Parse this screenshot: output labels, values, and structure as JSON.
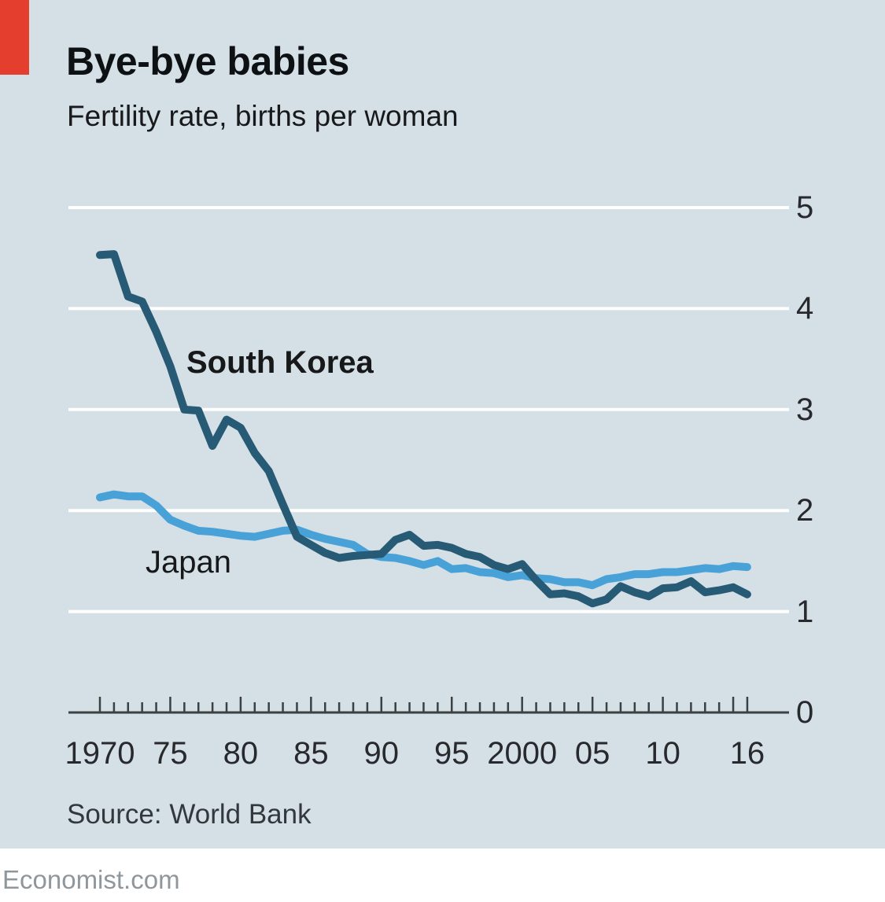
{
  "header": {
    "title": "Bye-bye babies",
    "subtitle": "Fertility rate, births per woman"
  },
  "annotations": {
    "south_korea": "South Korea",
    "japan": "Japan"
  },
  "source": {
    "text": "Source: World Bank"
  },
  "footer": {
    "text": "Economist.com"
  },
  "colors": {
    "panel_background": "#d4dfe6",
    "accent_red": "#e43e2f",
    "south_korea_line": "#275a74",
    "japan_line": "#48a2d8",
    "gridline": "#ffffff",
    "axis": "#3b4043",
    "tick_label": "#27292c"
  },
  "chart_data": {
    "type": "line",
    "title": "Bye-bye babies",
    "subtitle": "Fertility rate, births per woman",
    "xlabel": "",
    "ylabel": "Fertility rate, births per woman",
    "ylim": [
      0,
      5
    ],
    "yticks": [
      0,
      1,
      2,
      3,
      4,
      5
    ],
    "ytick_labels": [
      "0",
      "1",
      "2",
      "3",
      "4",
      "5"
    ],
    "grid": "horizontal white gridlines at integer values, y-axis labels on right",
    "legend": "inline series labels on chart",
    "x_years": [
      1970,
      1971,
      1972,
      1973,
      1974,
      1975,
      1976,
      1977,
      1978,
      1979,
      1980,
      1981,
      1982,
      1983,
      1984,
      1985,
      1986,
      1987,
      1988,
      1989,
      1990,
      1991,
      1992,
      1993,
      1994,
      1995,
      1996,
      1997,
      1998,
      1999,
      2000,
      2001,
      2002,
      2003,
      2004,
      2005,
      2006,
      2007,
      2008,
      2009,
      2010,
      2011,
      2012,
      2013,
      2014,
      2015,
      2016
    ],
    "xtick_labels": [
      {
        "year": 1970,
        "label": "1970"
      },
      {
        "year": 1975,
        "label": "75"
      },
      {
        "year": 1980,
        "label": "80"
      },
      {
        "year": 1985,
        "label": "85"
      },
      {
        "year": 1990,
        "label": "90"
      },
      {
        "year": 1995,
        "label": "95"
      },
      {
        "year": 2000,
        "label": "2000"
      },
      {
        "year": 2005,
        "label": "05"
      },
      {
        "year": 2010,
        "label": "10"
      },
      {
        "year": 2016,
        "label": "16"
      }
    ],
    "series": [
      {
        "name": "South Korea",
        "color_key": "south_korea_line",
        "values": [
          4.53,
          4.54,
          4.12,
          4.07,
          3.77,
          3.43,
          3.0,
          2.99,
          2.64,
          2.9,
          2.82,
          2.57,
          2.39,
          2.06,
          1.74,
          1.66,
          1.58,
          1.53,
          1.55,
          1.56,
          1.57,
          1.71,
          1.76,
          1.65,
          1.66,
          1.63,
          1.57,
          1.54,
          1.46,
          1.42,
          1.47,
          1.31,
          1.17,
          1.18,
          1.15,
          1.08,
          1.12,
          1.25,
          1.19,
          1.15,
          1.23,
          1.24,
          1.3,
          1.19,
          1.21,
          1.24,
          1.17
        ]
      },
      {
        "name": "Japan",
        "color_key": "japan_line",
        "values": [
          2.13,
          2.16,
          2.14,
          2.14,
          2.05,
          1.91,
          1.85,
          1.8,
          1.79,
          1.77,
          1.75,
          1.74,
          1.77,
          1.8,
          1.81,
          1.76,
          1.72,
          1.69,
          1.66,
          1.57,
          1.54,
          1.53,
          1.5,
          1.46,
          1.5,
          1.42,
          1.43,
          1.39,
          1.38,
          1.34,
          1.36,
          1.33,
          1.32,
          1.29,
          1.29,
          1.26,
          1.32,
          1.34,
          1.37,
          1.37,
          1.39,
          1.39,
          1.41,
          1.43,
          1.42,
          1.45,
          1.44
        ]
      }
    ]
  }
}
